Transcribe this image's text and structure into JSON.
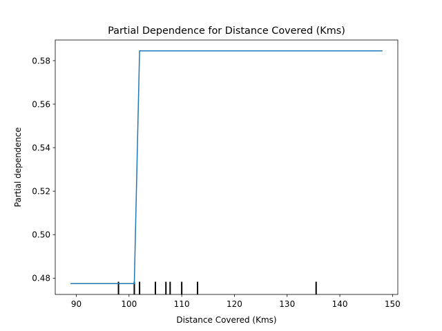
{
  "chart_data": {
    "type": "line",
    "title": "Partial Dependence for Distance Covered (Kms)",
    "xlabel": "Distance Covered (Kms)",
    "ylabel": "Partial dependence",
    "xlim": [
      86,
      151
    ],
    "ylim": [
      0.4725,
      0.5895
    ],
    "xticks": [
      90,
      100,
      110,
      120,
      130,
      140,
      150
    ],
    "yticks": [
      0.48,
      0.5,
      0.52,
      0.54,
      0.56,
      0.58
    ],
    "ytick_labels": [
      "0.48",
      "0.50",
      "0.52",
      "0.54",
      "0.56",
      "0.58"
    ],
    "series": [
      {
        "x": [
          89,
          101,
          102,
          148
        ],
        "y": [
          0.4775,
          0.4775,
          0.5845,
          0.5845
        ]
      }
    ],
    "rug": [
      98,
      101,
      102,
      105,
      107,
      107.8,
      110,
      113,
      135.5
    ],
    "grid": false,
    "colors": {
      "line": "#1f77b4",
      "rug": "#000000",
      "axes": "#000000"
    }
  }
}
